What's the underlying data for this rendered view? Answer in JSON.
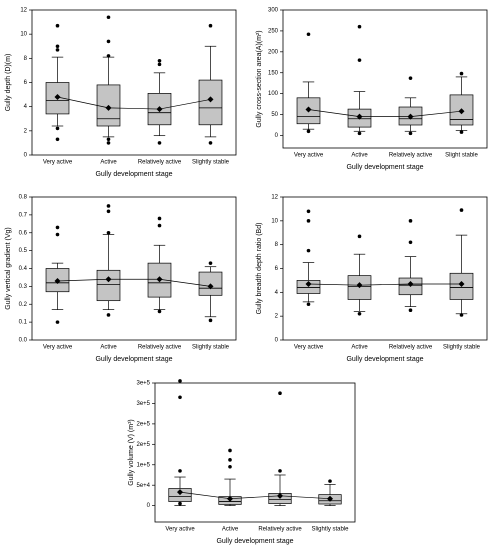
{
  "chart_data": [
    {
      "type": "box",
      "ylabel": "Gully depth (D)(m)",
      "xlabel": "Gully development stage",
      "categories": [
        "Very active",
        "Active",
        "Relatively active",
        "Slightly stable"
      ],
      "ylim": [
        0,
        12
      ],
      "yticks": [
        0,
        2,
        4,
        6,
        8,
        10,
        12
      ],
      "boxes": [
        {
          "whisker_low": 2.4,
          "q1": 3.4,
          "median": 4.5,
          "q3": 6.0,
          "whisker_high": 8.1,
          "mean": 4.8,
          "outliers": [
            10.7,
            9.0,
            8.7,
            2.2,
            1.3
          ]
        },
        {
          "whisker_low": 1.5,
          "q1": 2.4,
          "median": 3.0,
          "q3": 5.8,
          "whisker_high": 8.1,
          "mean": 3.9,
          "outliers": [
            11.4,
            9.4,
            8.2,
            1.3,
            1.0
          ]
        },
        {
          "whisker_low": 1.6,
          "q1": 2.5,
          "median": 3.5,
          "q3": 5.1,
          "whisker_high": 6.8,
          "mean": 3.8,
          "outliers": [
            7.8,
            7.5,
            1.0
          ]
        },
        {
          "whisker_low": 1.5,
          "q1": 2.5,
          "median": 3.9,
          "q3": 6.2,
          "whisker_high": 9.0,
          "mean": 4.6,
          "outliers": [
            10.7,
            1.0
          ]
        }
      ]
    },
    {
      "type": "box",
      "ylabel": "Gully cross-section area(A)(m²)",
      "xlabel": "Gully development stage",
      "categories": [
        "Very active",
        "Active",
        "Relatively active",
        "Slight stable"
      ],
      "ylim": [
        -30,
        300
      ],
      "yticks": [
        0,
        50,
        100,
        150,
        200,
        250,
        300
      ],
      "boxes": [
        {
          "whisker_low": 15,
          "q1": 28,
          "median": 45,
          "q3": 90,
          "whisker_high": 128,
          "mean": 62,
          "outliers": [
            242,
            10
          ]
        },
        {
          "whisker_low": 10,
          "q1": 20,
          "median": 40,
          "q3": 63,
          "whisker_high": 105,
          "mean": 45,
          "outliers": [
            260,
            180,
            5
          ]
        },
        {
          "whisker_low": 10,
          "q1": 25,
          "median": 40,
          "q3": 68,
          "whisker_high": 90,
          "mean": 45,
          "outliers": [
            137,
            5
          ]
        },
        {
          "whisker_low": 12,
          "q1": 25,
          "median": 38,
          "q3": 97,
          "whisker_high": 140,
          "mean": 58,
          "outliers": [
            148,
            8
          ]
        }
      ]
    },
    {
      "type": "box",
      "ylabel": "Gully vertical gradient (Vg)",
      "xlabel": "Gully development stage",
      "categories": [
        "Very active",
        "Active",
        "Relatively active",
        "Slightly stable"
      ],
      "ylim": [
        0,
        0.8
      ],
      "yticks": [
        {
          "value": 0,
          "label": "0.0"
        },
        0.1,
        0.2,
        0.3,
        0.4,
        0.5,
        0.6,
        0.7,
        0.8
      ],
      "boxes": [
        {
          "whisker_low": 0.17,
          "q1": 0.27,
          "median": 0.32,
          "q3": 0.4,
          "whisker_high": 0.43,
          "mean": 0.33,
          "outliers": [
            0.63,
            0.59,
            0.1
          ]
        },
        {
          "whisker_low": 0.17,
          "q1": 0.22,
          "median": 0.31,
          "q3": 0.39,
          "whisker_high": 0.59,
          "mean": 0.34,
          "outliers": [
            0.75,
            0.72,
            0.6,
            0.14
          ]
        },
        {
          "whisker_low": 0.17,
          "q1": 0.24,
          "median": 0.32,
          "q3": 0.43,
          "whisker_high": 0.53,
          "mean": 0.34,
          "outliers": [
            0.68,
            0.64,
            0.16
          ]
        },
        {
          "whisker_low": 0.13,
          "q1": 0.25,
          "median": 0.29,
          "q3": 0.38,
          "whisker_high": 0.41,
          "mean": 0.3,
          "outliers": [
            0.43,
            0.11
          ]
        }
      ]
    },
    {
      "type": "box",
      "ylabel": "Gully breadth depth ratio (Bd)",
      "xlabel": "Gully development stage",
      "categories": [
        "Very active",
        "Active",
        "Relatively active",
        "Slightly stable"
      ],
      "ylim": [
        0,
        12
      ],
      "yticks": [
        0,
        2,
        4,
        6,
        8,
        10,
        12
      ],
      "boxes": [
        {
          "whisker_low": 3.2,
          "q1": 3.9,
          "median": 4.4,
          "q3": 5.0,
          "whisker_high": 6.5,
          "mean": 4.7,
          "outliers": [
            10.8,
            10.0,
            7.5,
            3.0
          ]
        },
        {
          "whisker_low": 2.4,
          "q1": 3.4,
          "median": 4.5,
          "q3": 5.4,
          "whisker_high": 7.2,
          "mean": 4.6,
          "outliers": [
            8.7,
            2.2
          ]
        },
        {
          "whisker_low": 2.8,
          "q1": 3.8,
          "median": 4.6,
          "q3": 5.2,
          "whisker_high": 7.0,
          "mean": 4.7,
          "outliers": [
            10.0,
            8.2,
            2.5
          ]
        },
        {
          "whisker_low": 2.2,
          "q1": 3.4,
          "median": 4.4,
          "q3": 5.6,
          "whisker_high": 8.8,
          "mean": 4.7,
          "outliers": [
            10.9,
            2.1
          ]
        }
      ]
    },
    {
      "type": "box",
      "ylabel": "Gully volume (V) (m³)",
      "xlabel": "Gully development stage",
      "categories": [
        "Very active",
        "Active",
        "Relatively active",
        "Slightly stable"
      ],
      "ylim": [
        -40000,
        300000
      ],
      "yticks": [
        0,
        {
          "value": 50000,
          "label": "5e+4"
        },
        {
          "value": 100000,
          "label": "1e+5"
        },
        {
          "value": 150000,
          "label": "2e+5"
        },
        {
          "value": 200000,
          "label": "2e+5"
        },
        {
          "value": 250000,
          "label": "3e+5"
        },
        {
          "value": 300000,
          "label": "3e+5"
        }
      ],
      "boxes": [
        {
          "whisker_low": 0,
          "q1": 10000,
          "median": 22000,
          "q3": 42000,
          "whisker_high": 70000,
          "mean": 33000,
          "outliers": [
            305000,
            265000,
            85000,
            5000
          ]
        },
        {
          "whisker_low": 0,
          "q1": 3000,
          "median": 10000,
          "q3": 22000,
          "whisker_high": 65000,
          "mean": 17000,
          "outliers": [
            135000,
            112000,
            95000
          ]
        },
        {
          "whisker_low": 0,
          "q1": 5000,
          "median": 15000,
          "q3": 30000,
          "whisker_high": 75000,
          "mean": 24000,
          "outliers": [
            275000,
            85000
          ]
        },
        {
          "whisker_low": 0,
          "q1": 4000,
          "median": 12000,
          "q3": 27000,
          "whisker_high": 52000,
          "mean": 17000,
          "outliers": [
            60000
          ]
        }
      ]
    }
  ]
}
